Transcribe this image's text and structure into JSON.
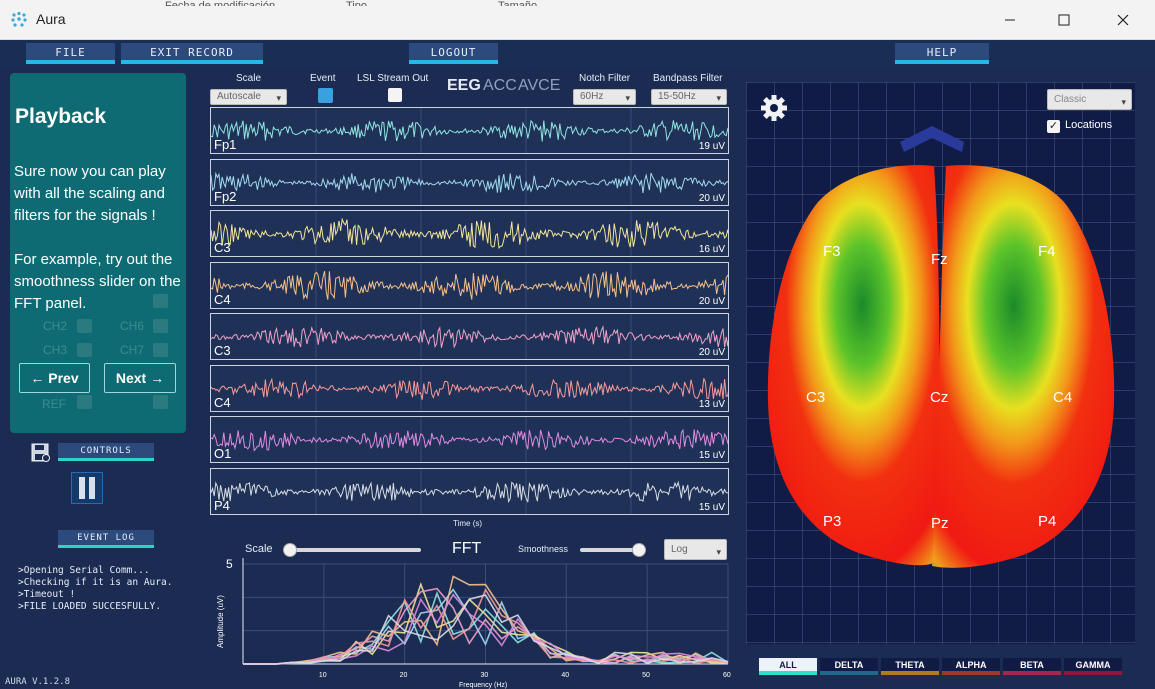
{
  "window": {
    "title": "Aura",
    "peek_texts": [
      "Fecha de modificación",
      "Tipo",
      "Tamaño"
    ]
  },
  "menu": {
    "file": "FILE",
    "exit_record": "EXIT RECORD",
    "logout": "LOGOUT",
    "help": "HELP"
  },
  "playback": {
    "title": "Playback",
    "paragraph1": "Sure now you can play with all the scaling and filters for the signals !",
    "paragraph2": "For example, try out the smoothness slider on the  FFT panel.",
    "ghost_labels": [
      "CH2",
      "CH6",
      "CH3",
      "CH7",
      "REF"
    ],
    "prev": "← Prev",
    "next": "Next →"
  },
  "controls": {
    "controls_label": "CONTROLS",
    "event_log_label": "EVENT LOG",
    "event_log": [
      ">Opening Serial Comm...",
      ">Checking if it is an Aura.",
      ">Timeout !",
      ">FILE LOADED SUCCESFULLY."
    ],
    "version": "AURA V.1.2.8"
  },
  "eeg": {
    "scale_label": "Scale",
    "scale_value": "Autoscale",
    "event_label": "Event",
    "event_checked": true,
    "lsl_label": "LSL Stream Out",
    "lsl_checked": false,
    "modes": [
      "EEG",
      "ACC",
      "AVCE"
    ],
    "notch_label": "Notch Filter",
    "notch_value": "60Hz",
    "bandpass_label": "Bandpass Filter",
    "bandpass_value": "15-50Hz",
    "xlabel": "Time (s)",
    "channels": [
      {
        "name": "Fp1",
        "scale": "19 uV",
        "color": "#8fe3e0"
      },
      {
        "name": "Fp2",
        "scale": "20 uV",
        "color": "#a0d8f0"
      },
      {
        "name": "C3",
        "scale": "16 uV",
        "color": "#f2e49a"
      },
      {
        "name": "C4",
        "scale": "20 uV",
        "color": "#f5c08a"
      },
      {
        "name": "C3",
        "scale": "20 uV",
        "color": "#f0a0c8"
      },
      {
        "name": "C4",
        "scale": "13 uV",
        "color": "#f59a9a"
      },
      {
        "name": "O1",
        "scale": "15 uV",
        "color": "#e08ae0"
      },
      {
        "name": "P4",
        "scale": "15 uV",
        "color": "#d8dce4"
      }
    ]
  },
  "fft": {
    "title": "FFT",
    "scale_label": "Scale",
    "scale_level": 0.0,
    "smoothness_label": "Smoothness",
    "smoothness_level": 0.9,
    "yscale_value": "Log",
    "ylabel": "Amplitude (uV)",
    "xlabel": "Frequency (Hz)",
    "y_max_label": "5",
    "xticks": [
      "10",
      "20",
      "30",
      "40",
      "50",
      "60"
    ]
  },
  "brain": {
    "mode_value": "Classic",
    "locations_label": "Locations",
    "locations_checked": true,
    "electrodes": [
      "F3",
      "Fz",
      "F4",
      "C3",
      "Cz",
      "C4",
      "P3",
      "Pz",
      "P4"
    ],
    "bands": [
      "ALL",
      "DELTA",
      "THETA",
      "ALPHA",
      "BETA",
      "GAMMA"
    ],
    "band_colors": [
      "#2ee0c8",
      "#1e6a8a",
      "#b07a28",
      "#9a3a2a",
      "#a02a4a",
      "#8a1a3a"
    ]
  }
}
